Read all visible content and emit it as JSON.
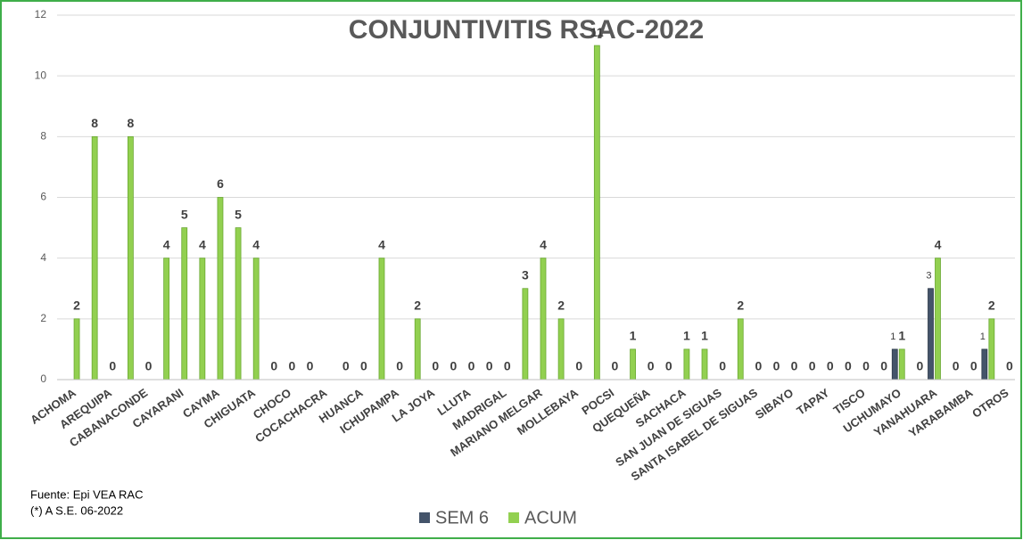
{
  "chart_data": {
    "type": "bar",
    "title": "CONJUNTIVITIS RSAC-2022",
    "categories": [
      "ACHOMA",
      null,
      "AREQUIPA",
      null,
      "CABANACONDE",
      null,
      "CAYARANI",
      null,
      "CAYMA",
      null,
      "CHIGUATA",
      null,
      "CHOCO",
      null,
      "COCACHACRA",
      null,
      "HUANCA",
      null,
      "ICHUPAMPA",
      null,
      "LA JOYA",
      null,
      "LLUTA",
      null,
      "MADRIGAL",
      null,
      "MARIANO MELGAR",
      null,
      "MOLLEBAYA",
      null,
      "POCSI",
      null,
      "QUEQUEÑA",
      null,
      "SACHACA",
      null,
      "SAN JUAN DE SIGUAS",
      null,
      "SANTA ISABEL DE SIGUAS",
      null,
      "SIBAYO",
      null,
      "TAPAY",
      null,
      "TISCO",
      null,
      "UCHUMAYO",
      null,
      "YANAHUARA",
      null,
      "YARABAMBA",
      null,
      "OTROS"
    ],
    "series": [
      {
        "name": "SEM 6",
        "color": "#44546a",
        "values": [
          0,
          0,
          0,
          0,
          0,
          0,
          0,
          0,
          0,
          0,
          0,
          0,
          0,
          0,
          null,
          0,
          0,
          0,
          0,
          0,
          0,
          0,
          0,
          0,
          0,
          0,
          0,
          0,
          0,
          0,
          0,
          0,
          0,
          0,
          0,
          0,
          0,
          0,
          0,
          0,
          0,
          0,
          0,
          0,
          0,
          0,
          1,
          0,
          3,
          0,
          0,
          1,
          0
        ]
      },
      {
        "name": "ACUM",
        "color": "#92d050",
        "values": [
          2,
          8,
          0,
          8,
          0,
          4,
          5,
          4,
          6,
          5,
          4,
          0,
          0,
          0,
          null,
          0,
          0,
          4,
          0,
          2,
          0,
          0,
          0,
          0,
          0,
          3,
          4,
          2,
          0,
          11,
          0,
          1,
          0,
          0,
          1,
          1,
          0,
          2,
          0,
          0,
          0,
          0,
          0,
          0,
          0,
          0,
          1,
          0,
          4,
          0,
          0,
          2,
          0
        ]
      }
    ],
    "ylim": [
      0,
      12
    ],
    "yticks": [
      0,
      2,
      4,
      6,
      8,
      10,
      12
    ],
    "grid": true,
    "notes": [
      "Fuente:  Epi VEA RAC",
      "(*) A S.E. 06-2022"
    ]
  }
}
